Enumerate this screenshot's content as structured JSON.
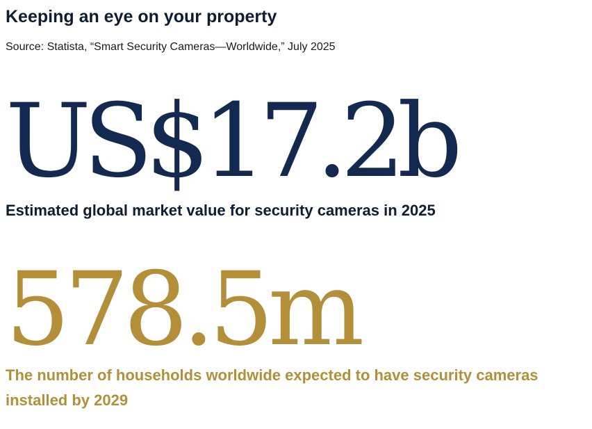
{
  "header": {
    "title": "Keeping an eye on your property",
    "source": "Source: Statista, “Smart Security Cameras—Worldwide,” July 2025"
  },
  "stats": [
    {
      "value": "US$17.2b",
      "caption": "Estimated global market value for security cameras in 2025",
      "color": "#142950"
    },
    {
      "value": "578.5m",
      "caption": "The number of households worldwide expected to have security cameras installed by 2029",
      "color": "#b38f3a"
    }
  ]
}
